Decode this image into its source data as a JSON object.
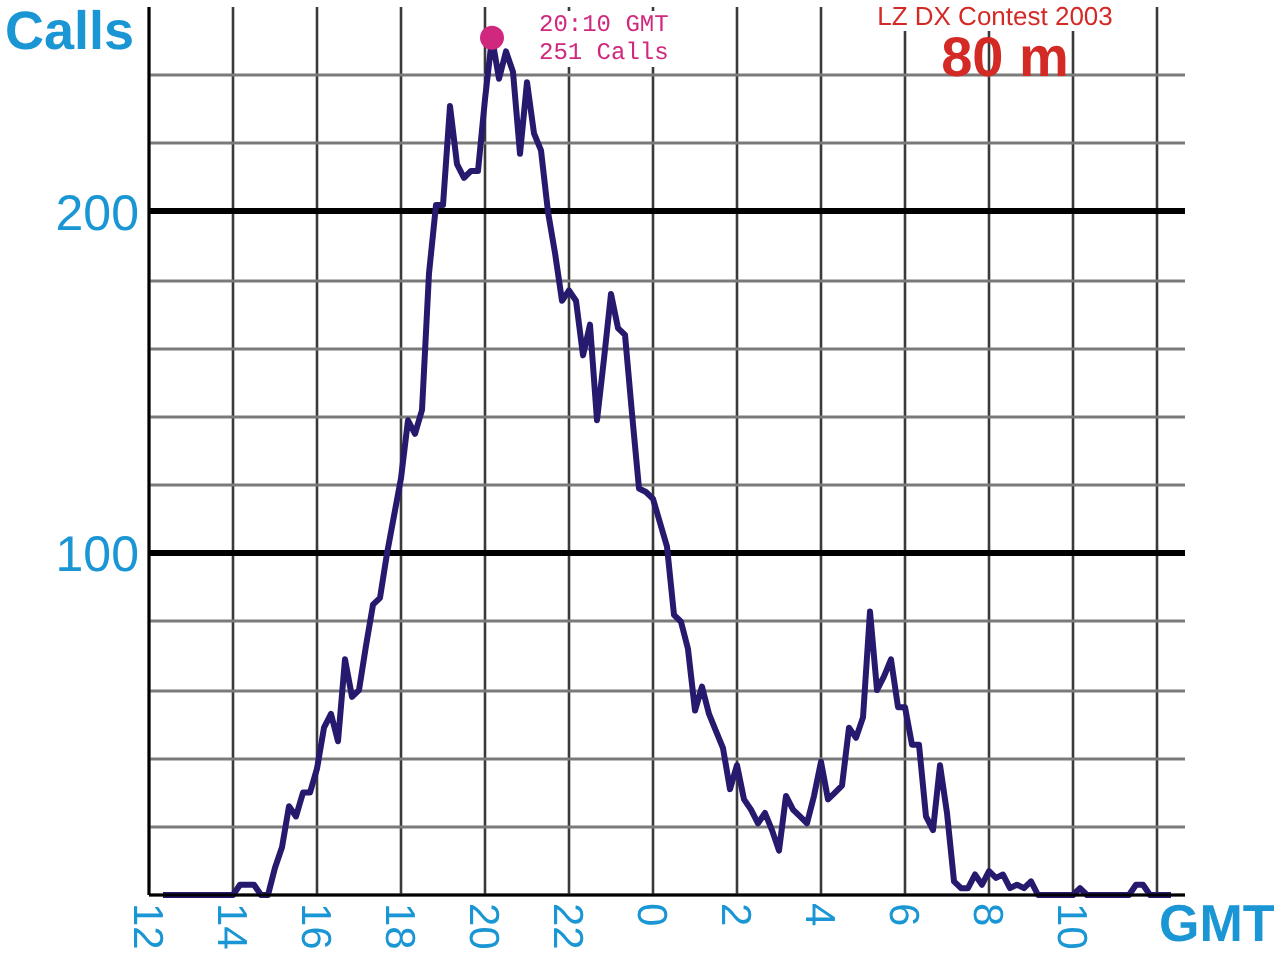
{
  "chart_data": {
    "type": "line",
    "title": "LZ DX Contest 2003",
    "subtitle": "80 m",
    "xlabel": "GMT",
    "ylabel": "Calls",
    "annotations": [
      "20:10 GMT\n251 Calls"
    ],
    "categories": [
      "12",
      null,
      null,
      null,
      null,
      null,
      null,
      null,
      null,
      null,
      null,
      null,
      "14",
      null,
      null,
      null,
      null,
      null,
      null,
      null,
      null,
      null,
      null,
      null,
      "16",
      null,
      null,
      null,
      null,
      null,
      null,
      null,
      null,
      null,
      null,
      null,
      "18",
      null,
      null,
      null,
      null,
      null,
      null,
      null,
      null,
      null,
      null,
      null,
      "20",
      null,
      null,
      null,
      null,
      null,
      null,
      null,
      null,
      null,
      null,
      null,
      "22",
      null,
      null,
      null,
      null,
      null,
      null,
      null,
      null,
      null,
      null,
      null,
      "0",
      null,
      null,
      null,
      null,
      null,
      null,
      null,
      null,
      null,
      null,
      null,
      "2",
      null,
      null,
      null,
      null,
      null,
      null,
      null,
      null,
      null,
      null,
      null,
      "4",
      null,
      null,
      null,
      null,
      null,
      null,
      null,
      null,
      null,
      null,
      null,
      "6",
      null,
      null,
      null,
      null,
      null,
      null,
      null,
      null,
      null,
      null,
      null,
      "8",
      null,
      null,
      null,
      null,
      null,
      null,
      null,
      null,
      null,
      null,
      null,
      "10",
      null,
      null,
      null,
      null,
      null,
      null,
      null,
      null,
      null,
      null,
      null,
      null,
      null,
      null,
      null,
      null
    ],
    "series": [
      {
        "color": "#261a6e",
        "values": [
          null,
          null,
          0,
          0,
          0,
          0,
          0,
          0,
          0,
          0,
          0,
          0,
          0,
          3,
          3,
          3,
          0,
          0,
          8,
          14,
          26,
          23,
          30,
          30,
          37,
          49,
          53,
          45,
          69,
          58,
          60,
          73,
          85,
          87,
          100,
          111,
          122,
          139,
          135,
          142,
          182,
          202,
          202,
          231,
          214,
          210,
          212,
          212,
          233,
          251,
          239,
          247,
          241,
          217,
          238,
          223,
          218,
          200,
          188,
          174,
          177,
          174,
          158,
          167,
          139,
          157,
          176,
          166,
          164,
          141,
          119,
          118,
          116,
          109,
          102,
          82,
          80,
          72,
          54,
          61,
          53,
          48,
          43,
          31,
          38,
          28,
          25,
          21,
          24,
          19,
          13,
          29,
          25,
          23,
          21,
          29,
          39,
          28,
          30,
          32,
          49,
          46,
          52,
          83,
          60,
          64,
          69,
          55,
          55,
          44,
          44,
          23,
          19,
          38,
          24,
          4,
          2,
          2,
          6,
          3,
          7,
          5,
          6,
          2,
          3,
          2,
          4,
          0,
          0,
          0,
          0,
          0,
          0,
          2,
          0,
          0,
          0,
          0,
          0,
          0,
          0,
          3,
          3,
          0,
          0,
          0,
          0,
          null,
          null
        ]
      },
      {
        "type": "scatter",
        "color": "#d0287e",
        "values": [
          null,
          null,
          null,
          null,
          null,
          null,
          null,
          null,
          null,
          null,
          null,
          null,
          null,
          null,
          null,
          null,
          null,
          null,
          null,
          null,
          null,
          null,
          null,
          null,
          null,
          null,
          null,
          null,
          null,
          null,
          null,
          null,
          null,
          null,
          null,
          null,
          null,
          null,
          null,
          null,
          null,
          null,
          null,
          null,
          null,
          null,
          null,
          null,
          null,
          251,
          null,
          null,
          null,
          null,
          null,
          null,
          null,
          null,
          null,
          null,
          null,
          null,
          null,
          null,
          null,
          null,
          null,
          null,
          null,
          null,
          null,
          null,
          null,
          null,
          null,
          null,
          null,
          null,
          null,
          null,
          null,
          null,
          null,
          null,
          null,
          null,
          null,
          null,
          null,
          null,
          null,
          null,
          null,
          null,
          null,
          null,
          null,
          null,
          null,
          null,
          null,
          null,
          null,
          null,
          null,
          null,
          null,
          null,
          null,
          null,
          null,
          null,
          null,
          null,
          null,
          null,
          null,
          null,
          null,
          null,
          null,
          null,
          null,
          null,
          null,
          null,
          null,
          null,
          null,
          null,
          null,
          null,
          null,
          null,
          null,
          null,
          null,
          null,
          null,
          null,
          null,
          null,
          null,
          null,
          null,
          null,
          null,
          null,
          null
        ]
      }
    ],
    "ylim": [
      0,
      260
    ],
    "yticks": [
      {
        "value": 0,
        "label": null
      },
      {
        "value": 20,
        "label": null
      },
      {
        "value": 40,
        "label": null
      },
      {
        "value": 60,
        "label": null
      },
      {
        "value": 80,
        "label": null
      },
      100,
      {
        "value": 120,
        "label": null
      },
      {
        "value": 140,
        "label": null
      },
      {
        "value": 160,
        "label": null
      },
      {
        "value": 180,
        "label": null
      },
      200,
      {
        "value": 220,
        "label": null
      },
      {
        "value": 240,
        "label": null
      }
    ],
    "grid": true
  }
}
